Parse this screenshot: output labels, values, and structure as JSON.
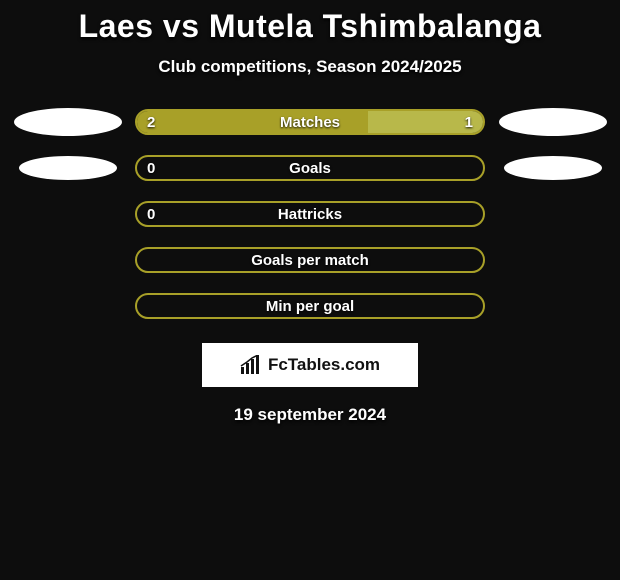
{
  "title": "Laes vs Mutela Tshimbalanga",
  "subtitle": "Club competitions, Season 2024/2025",
  "date": "19 september 2024",
  "attribution": "FcTables.com",
  "colors": {
    "background": "#0d0d0d",
    "text": "#ffffff",
    "accent": "#a8a028",
    "accent_light": "#b8b84a",
    "ellipse": "#ffffff",
    "attrib_box": "#ffffff",
    "attrib_text": "#111111"
  },
  "logo_ellipses": [
    {
      "left_w": 108,
      "left_h": 28,
      "right_w": 108,
      "right_h": 28
    },
    {
      "left_w": 98,
      "left_h": 24,
      "right_w": 98,
      "right_h": 24
    }
  ],
  "rows": [
    {
      "label": "Matches",
      "left_value": "2",
      "right_value": "1",
      "left_pct": 66.7,
      "right_pct": 33.3,
      "left_fill": "#a8a028",
      "right_fill": "#b8b84a",
      "border_color": "#a8a028",
      "show_left_logo": true,
      "show_right_logo": true,
      "logo_row_index": 0
    },
    {
      "label": "Goals",
      "left_value": "0",
      "right_value": "",
      "left_pct": 0,
      "right_pct": 0,
      "left_fill": "#a8a028",
      "right_fill": "#b8b84a",
      "border_color": "#a8a028",
      "show_left_logo": true,
      "show_right_logo": true,
      "logo_row_index": 1
    },
    {
      "label": "Hattricks",
      "left_value": "0",
      "right_value": "",
      "left_pct": 0,
      "right_pct": 0,
      "left_fill": "#a8a028",
      "right_fill": "#b8b84a",
      "border_color": "#a8a028",
      "show_left_logo": false,
      "show_right_logo": false
    },
    {
      "label": "Goals per match",
      "left_value": "",
      "right_value": "",
      "left_pct": 0,
      "right_pct": 0,
      "left_fill": "#a8a028",
      "right_fill": "#b8b84a",
      "border_color": "#a8a028",
      "show_left_logo": false,
      "show_right_logo": false
    },
    {
      "label": "Min per goal",
      "left_value": "",
      "right_value": "",
      "left_pct": 0,
      "right_pct": 0,
      "left_fill": "#a8a028",
      "right_fill": "#b8b84a",
      "border_color": "#a8a028",
      "show_left_logo": false,
      "show_right_logo": false
    }
  ]
}
